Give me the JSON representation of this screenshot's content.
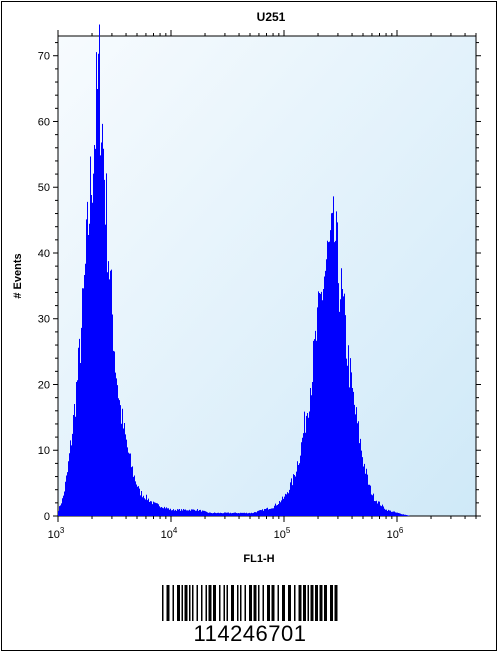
{
  "chart_data": {
    "type": "area",
    "title": "U251",
    "xlabel": "FL1-H",
    "ylabel": "# Events",
    "x_scale": "log",
    "xlim": [
      1000,
      5000000
    ],
    "ylim": [
      0,
      73
    ],
    "x_ticks": [
      {
        "value": 1000,
        "base": "10",
        "exp": "3"
      },
      {
        "value": 10000,
        "base": "10",
        "exp": "4"
      },
      {
        "value": 100000,
        "base": "10",
        "exp": "5"
      },
      {
        "value": 1000000,
        "base": "10",
        "exp": "6"
      }
    ],
    "y_ticks": [
      0,
      10,
      20,
      30,
      40,
      50,
      60,
      70
    ],
    "grid": false,
    "series": [
      {
        "color": "#0000ff",
        "x": [
          1000,
          1100,
          1200,
          1350,
          1500,
          1650,
          1800,
          1950,
          2100,
          2200,
          2300,
          2400,
          2500,
          2650,
          2800,
          3000,
          3200,
          3500,
          3800,
          4200,
          4600,
          5200,
          6000,
          7000,
          8500,
          10000,
          13000,
          17000,
          22000,
          30000,
          40000,
          52000,
          65000,
          80000,
          100000,
          120000,
          140000,
          160000,
          180000,
          200000,
          220000,
          240000,
          260000,
          280000,
          300000,
          330000,
          360000,
          400000,
          450000,
          500000,
          560000,
          620000,
          700000,
          800000,
          1000000,
          1300000
        ],
        "y": [
          1,
          3,
          7,
          15,
          24,
          34,
          45,
          55,
          63,
          68,
          72,
          66,
          60,
          50,
          42,
          33,
          25,
          18,
          14,
          10,
          7,
          4,
          3,
          2,
          1.5,
          1,
          1,
          1,
          0.5,
          0.5,
          0.5,
          0.5,
          1,
          1.5,
          3,
          6,
          11,
          18,
          25,
          32,
          38,
          42,
          44,
          46,
          40,
          34,
          27,
          20,
          14,
          9,
          5,
          3,
          2,
          1,
          0.5,
          0
        ]
      }
    ],
    "barcode": "114246701"
  },
  "colors": {
    "plot_background": "#dff0fa",
    "series_fill": "#0000ff",
    "frame": "#000000"
  }
}
